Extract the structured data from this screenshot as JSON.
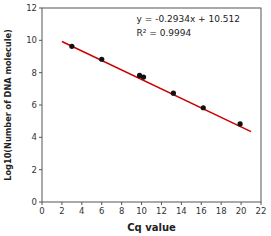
{
  "chart_data": {
    "type": "scatter",
    "xlabel": "Cq value",
    "ylabel": "Log10(Number of DNA molecule)",
    "xlim": [
      0,
      22
    ],
    "ylim": [
      0,
      12
    ],
    "xticks": [
      0,
      2,
      4,
      6,
      8,
      10,
      12,
      14,
      16,
      18,
      20,
      22
    ],
    "yticks": [
      0,
      2,
      4,
      6,
      8,
      10,
      12
    ],
    "grid": false,
    "series": [
      {
        "type": "line",
        "color": "#cc0000",
        "x": [
          2.0,
          21.0
        ],
        "values": [
          9.9252,
          4.3506
        ]
      },
      {
        "type": "scatter",
        "color": "#111111",
        "x": [
          3.0,
          6.0,
          9.8,
          10.2,
          13.2,
          16.2,
          19.9
        ],
        "values": [
          9.63,
          8.83,
          7.83,
          7.73,
          6.73,
          5.83,
          4.83
        ]
      }
    ],
    "annotations": [
      {
        "text": "y = -0.2934x + 10.512",
        "x": 9.5,
        "y": 11.3
      },
      {
        "text": "R² = 0.9994",
        "x": 9.5,
        "y": 10.4
      }
    ]
  }
}
